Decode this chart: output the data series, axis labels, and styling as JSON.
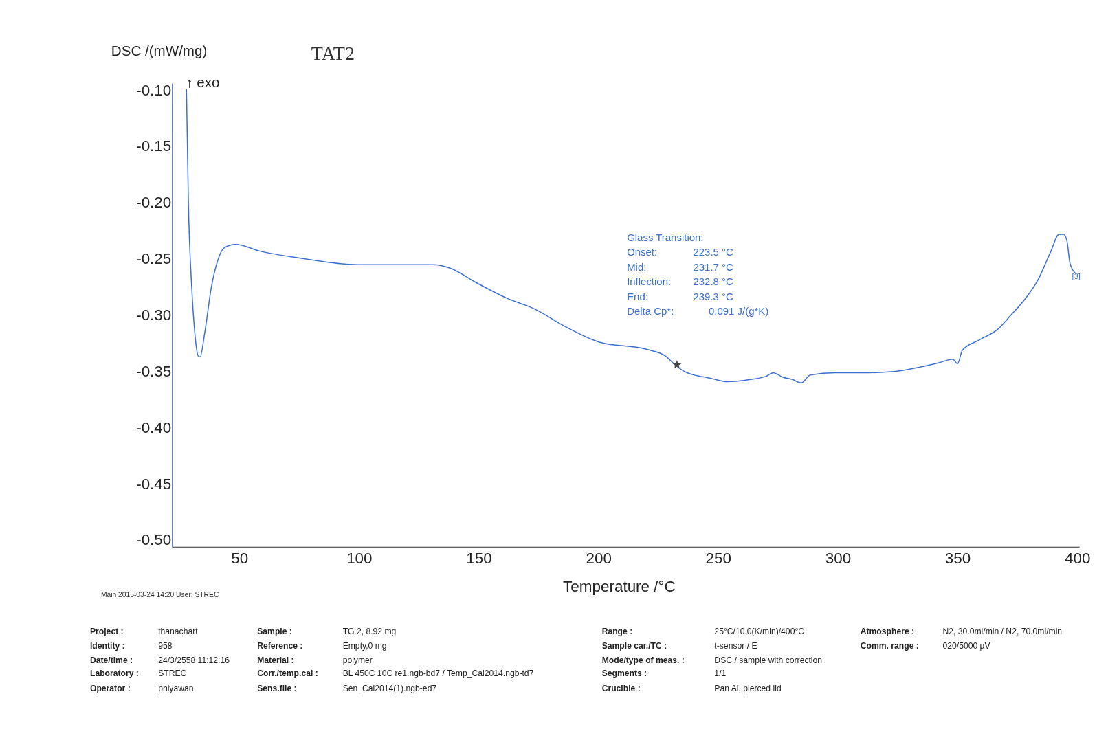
{
  "chart_data": {
    "type": "line",
    "xlabel": "Temperature /°C",
    "ylabel": "DSC /(mW/mg)",
    "xlim": [
      22,
      401
    ],
    "ylim": [
      -0.506,
      -0.094
    ],
    "xticks": [
      50,
      100,
      150,
      200,
      250,
      300,
      350,
      400
    ],
    "yticks": [
      {
        "value": -0.1,
        "label": "-0.10"
      },
      {
        "value": -0.15,
        "label": "-0.15"
      },
      {
        "value": -0.2,
        "label": "-0.20"
      },
      {
        "value": -0.25,
        "label": "-0.25"
      },
      {
        "value": -0.3,
        "label": "-0.30"
      },
      {
        "value": -0.35,
        "label": "-0.35"
      },
      {
        "value": -0.4,
        "label": "-0.40"
      },
      {
        "value": -0.45,
        "label": "-0.45"
      },
      {
        "value": -0.5,
        "label": "-0.50"
      }
    ],
    "grid": false,
    "series": [
      {
        "color": "#3b6fd0",
        "x": [
          27.9,
          28.7,
          30.1,
          31.4,
          32.8,
          33.6,
          35.5,
          38.3,
          41.0,
          43.7,
          48.4,
          58.7,
          75.1,
          99.7,
          116,
          131,
          138,
          149,
          162,
          173,
          187,
          200.6,
          219.7,
          227.9,
          232,
          236,
          247,
          253.8,
          263.4,
          270.2,
          273,
          277,
          281,
          284.7,
          288.5,
          298.9,
          312.5,
          323.4,
          334.3,
          342.5,
          348,
          350,
          352,
          359,
          367,
          372.6,
          378,
          383.7,
          389,
          392.4,
          394.3,
          395.7,
          397,
          399.4
        ],
        "values": [
          -0.099,
          -0.199,
          -0.275,
          -0.316,
          -0.336,
          -0.337,
          -0.316,
          -0.275,
          -0.251,
          -0.24,
          -0.237,
          -0.243,
          -0.249,
          -0.255,
          -0.255,
          -0.255,
          -0.258,
          -0.271,
          -0.285,
          -0.294,
          -0.311,
          -0.324,
          -0.33,
          -0.336,
          -0.344,
          -0.35,
          -0.356,
          -0.359,
          -0.357,
          -0.354,
          -0.351,
          -0.355,
          -0.357,
          -0.36,
          -0.353,
          -0.351,
          -0.351,
          -0.35,
          -0.346,
          -0.342,
          -0.339,
          -0.343,
          -0.331,
          -0.322,
          -0.312,
          -0.299,
          -0.286,
          -0.268,
          -0.243,
          -0.228,
          -0.228,
          -0.234,
          -0.254,
          -0.263
        ]
      },
      {
        "type": "scatter",
        "marker": "star",
        "color": "#444444",
        "x": [
          232.8
        ],
        "values": [
          -0.344
        ]
      }
    ],
    "annotations": [
      "TAT2",
      "↑ exo",
      "Glass Transition:",
      "Onset:",
      "223.5 °C",
      "Mid:",
      "231.7 °C",
      "Inflection:",
      "232.8 °C",
      "End:",
      "239.3 °C",
      "Delta Cp*:",
      "0.091 J/(g*K)",
      "[3]",
      "Main  2015-03-24 14:20   User: STREC",
      "Project :",
      "thanachart",
      "Sample :",
      "TG 2, 8.92 mg",
      "Range :",
      "25°C/10.0(K/min)/400°C",
      "Atmosphere :",
      "N2, 30.0ml/min / N2, 70.0ml/min",
      "Identity :",
      "958",
      "Reference :",
      "Empty,0 mg",
      "Sample car./TC :",
      "t-sensor / E",
      "Comm. range :",
      "020/5000 µV",
      "Date/time :",
      "24/3/2558 11:12:16",
      "Material :",
      "polymer",
      "Mode/type of meas. :",
      "DSC / sample with correction",
      "Laboratory :",
      "STREC",
      "Corr./temp.cal :",
      "BL 450C 10C re1.ngb-bd7 / Temp_Cal2014.ngb-td7",
      "Segments :",
      "1/1",
      "Operator :",
      "phiyawan",
      "Sens.file :",
      "Sen_Cal2014(1).ngb-ed7",
      "Crucible :",
      "Pan Al, pierced lid"
    ]
  }
}
